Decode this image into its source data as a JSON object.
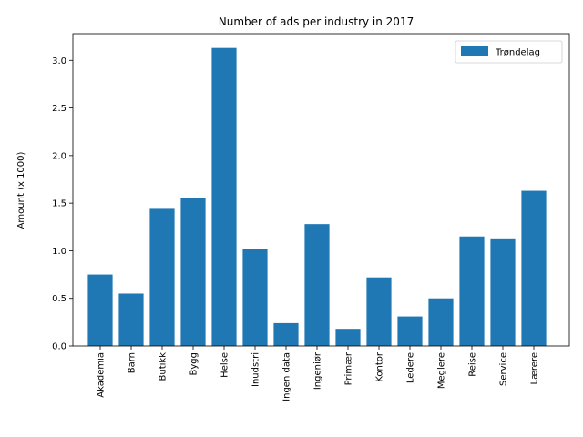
{
  "chart_data": {
    "type": "bar",
    "title": "Number of ads per industry in 2017",
    "xlabel": "",
    "ylabel": "Amount (x 1000)",
    "categories": [
      "Akademia",
      "Barn",
      "Butikk",
      "Bygg",
      "Helse",
      "Inudstri",
      "Ingen data",
      "Ingeniør",
      "Primær",
      "Kontor",
      "Ledere",
      "Meglere",
      "Reise",
      "Service",
      "Lærere"
    ],
    "series": [
      {
        "name": "Trøndelag",
        "color": "#1f77b4",
        "values": [
          0.75,
          0.55,
          1.44,
          1.55,
          3.13,
          1.02,
          0.24,
          1.28,
          0.18,
          0.72,
          0.31,
          0.5,
          1.15,
          1.13,
          1.63
        ]
      }
    ],
    "ylim": [
      0,
      3.28
    ],
    "yticks": [
      "0.0",
      "0.5",
      "1.0",
      "1.5",
      "2.0",
      "2.5",
      "3.0"
    ],
    "grid": false,
    "legend": "top-right"
  }
}
